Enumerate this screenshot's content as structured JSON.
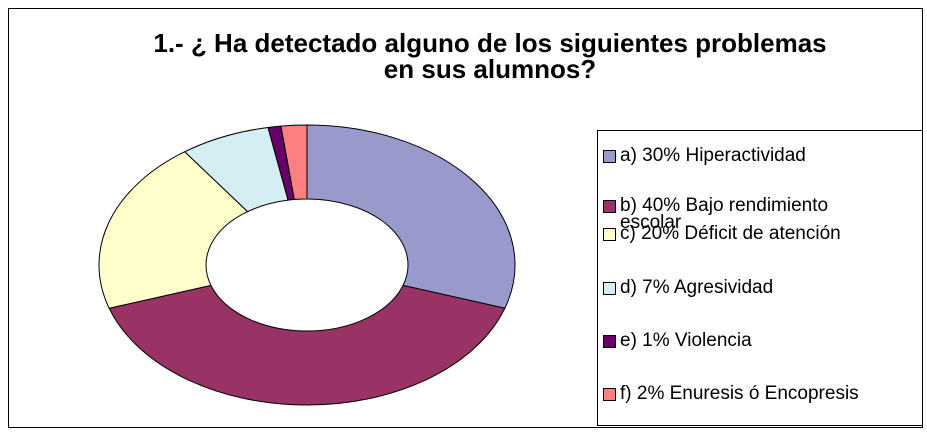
{
  "chart_data": {
    "type": "donut",
    "title": "1.- ¿ Ha detectado alguno de los siguientes problemas en sus alumnos?",
    "categories": [
      "a) 30% Hiperactividad",
      "b) 40% Bajo rendimiento escolar",
      "c) 20% Déficit de atención",
      "d) 7% Agresividad",
      "e) 1% Violencia",
      "f) 2% Enuresis ó Encopresis"
    ],
    "values": [
      30,
      40,
      20,
      7,
      1,
      2
    ],
    "colors": [
      "#9999cc",
      "#993366",
      "#ffffcc",
      "#d4eef4",
      "#660066",
      "#ff8080"
    ],
    "legend": "right"
  }
}
